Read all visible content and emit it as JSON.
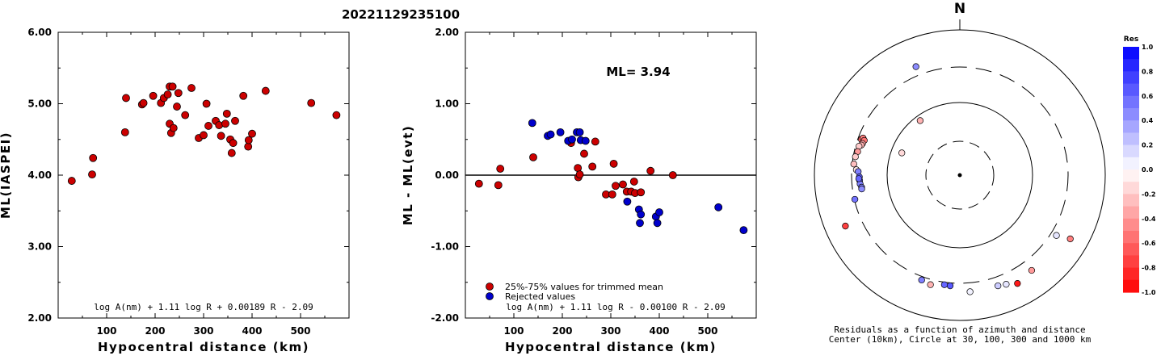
{
  "title": "20221129235100",
  "chart_data": [
    {
      "type": "scatter",
      "ylabel": "ML(IASPEI)",
      "xlabel": "Hypocentral distance (km)",
      "xlim": [
        0,
        600
      ],
      "ylim": [
        2.0,
        6.0
      ],
      "yticks": [
        "2.00",
        "3.00",
        "4.00",
        "5.00",
        "6.00"
      ],
      "xticks": [
        "100",
        "200",
        "300",
        "400",
        "500"
      ],
      "formula": "log A(nm) + 1.11 log R + 0.00189 R - 2.09",
      "points": [
        [
          28,
          3.92
        ],
        [
          70,
          4.01
        ],
        [
          72,
          4.24
        ],
        [
          138,
          4.6
        ],
        [
          140,
          5.08
        ],
        [
          173,
          4.99
        ],
        [
          176,
          5.01
        ],
        [
          196,
          5.11
        ],
        [
          212,
          5.01
        ],
        [
          218,
          5.08
        ],
        [
          226,
          5.13
        ],
        [
          230,
          5.24
        ],
        [
          230,
          4.72
        ],
        [
          233,
          4.59
        ],
        [
          236,
          5.24
        ],
        [
          238,
          4.66
        ],
        [
          245,
          4.96
        ],
        [
          248,
          5.15
        ],
        [
          262,
          4.84
        ],
        [
          275,
          5.22
        ],
        [
          290,
          4.52
        ],
        [
          300,
          4.56
        ],
        [
          306,
          5.0
        ],
        [
          310,
          4.69
        ],
        [
          325,
          4.76
        ],
        [
          332,
          4.7
        ],
        [
          336,
          4.55
        ],
        [
          345,
          4.72
        ],
        [
          348,
          4.86
        ],
        [
          355,
          4.5
        ],
        [
          358,
          4.31
        ],
        [
          361,
          4.45
        ],
        [
          365,
          4.76
        ],
        [
          382,
          5.11
        ],
        [
          392,
          4.4
        ],
        [
          393,
          4.49
        ],
        [
          400,
          4.58
        ],
        [
          428,
          5.18
        ],
        [
          522,
          5.01
        ],
        [
          574,
          4.84
        ]
      ]
    },
    {
      "type": "scatter",
      "ylabel": "ML - ML(evt)",
      "xlabel": "Hypocentral distance (km)",
      "xlim": [
        0,
        600
      ],
      "ylim": [
        -2.0,
        2.0
      ],
      "yticks": [
        "-2.00",
        "-1.00",
        "0.00",
        "1.00",
        "2.00"
      ],
      "xticks": [
        "100",
        "200",
        "300",
        "400",
        "500"
      ],
      "annotation": "ML= 3.94",
      "formula": "log A(nm) + 1.11 log R - 0.00100 R - 2.09",
      "series": [
        {
          "name": "25%-75% values for trimmed mean",
          "color": "#cc0000",
          "points": [
            [
              28,
              -0.12
            ],
            [
              68,
              -0.14
            ],
            [
              72,
              0.09
            ],
            [
              140,
              0.25
            ],
            [
              218,
              0.45
            ],
            [
              232,
              0.1
            ],
            [
              233,
              -0.03
            ],
            [
              236,
              0.01
            ],
            [
              245,
              0.3
            ],
            [
              262,
              0.12
            ],
            [
              268,
              0.47
            ],
            [
              290,
              -0.27
            ],
            [
              303,
              -0.27
            ],
            [
              306,
              0.16
            ],
            [
              310,
              -0.15
            ],
            [
              325,
              -0.13
            ],
            [
              333,
              -0.23
            ],
            [
              342,
              -0.23
            ],
            [
              348,
              -0.09
            ],
            [
              350,
              -0.25
            ],
            [
              362,
              -0.24
            ],
            [
              382,
              0.06
            ],
            [
              428,
              0.0
            ]
          ]
        },
        {
          "name": "Rejected values",
          "color": "#0000cc",
          "points": [
            [
              138,
              0.73
            ],
            [
              170,
              0.55
            ],
            [
              176,
              0.57
            ],
            [
              196,
              0.6
            ],
            [
              212,
              0.48
            ],
            [
              220,
              0.5
            ],
            [
              230,
              0.6
            ],
            [
              236,
              0.6
            ],
            [
              238,
              0.49
            ],
            [
              248,
              0.48
            ],
            [
              334,
              -0.37
            ],
            [
              358,
              -0.48
            ],
            [
              360,
              -0.67
            ],
            [
              362,
              -0.55
            ],
            [
              393,
              -0.58
            ],
            [
              396,
              -0.67
            ],
            [
              400,
              -0.52
            ],
            [
              522,
              -0.45
            ],
            [
              574,
              -0.77
            ]
          ]
        }
      ]
    },
    {
      "type": "polar-scatter",
      "north_label": "N",
      "caption_line1": "Residuals as a function of azimuth and distance",
      "caption_line2": "Center (10km), Circle at 30, 100, 300 and 1000 km",
      "rings_km": [
        30,
        100,
        300,
        1000
      ],
      "colorbar": {
        "title": "Res",
        "min": -1.0,
        "max": 1.0,
        "ticks": [
          "1.0",
          "0.8",
          "0.6",
          "0.4",
          "0.2",
          "0.0",
          "-0.2",
          "-0.4",
          "-0.6",
          "-0.8",
          "-1.0"
        ],
        "positive_color": "#0000ff",
        "negative_color": "#ff0000"
      },
      "points": [
        {
          "az": 338,
          "km": 400,
          "res": 0.45
        },
        {
          "az": 290,
          "km": 270,
          "res": -0.6
        },
        {
          "az": 291,
          "km": 260,
          "res": -0.5
        },
        {
          "az": 290,
          "km": 245,
          "res": -0.55
        },
        {
          "az": 288,
          "km": 250,
          "res": -0.35
        },
        {
          "az": 287,
          "km": 255,
          "res": -0.3
        },
        {
          "az": 286,
          "km": 270,
          "res": -0.2
        },
        {
          "az": 283,
          "km": 270,
          "res": -0.4
        },
        {
          "az": 280,
          "km": 280,
          "res": -0.2
        },
        {
          "az": 276,
          "km": 285,
          "res": -0.25
        },
        {
          "az": 273,
          "km": 260,
          "res": -0.1
        },
        {
          "az": 272,
          "km": 245,
          "res": 0.5
        },
        {
          "az": 269,
          "km": 236,
          "res": 0.6
        },
        {
          "az": 267,
          "km": 235,
          "res": 0.55
        },
        {
          "az": 265,
          "km": 233,
          "res": 0.5
        },
        {
          "az": 268,
          "km": 240,
          "res": 0.6
        },
        {
          "az": 263,
          "km": 225,
          "res": 0.5
        },
        {
          "az": 262,
          "km": 226,
          "res": 0.45
        },
        {
          "az": 257,
          "km": 295,
          "res": 0.55
        },
        {
          "az": 246,
          "km": 520,
          "res": -0.75
        },
        {
          "az": 324,
          "km": 85,
          "res": -0.3
        },
        {
          "az": 291,
          "km": 72,
          "res": -0.15
        },
        {
          "az": 122,
          "km": 360,
          "res": 0.1
        },
        {
          "az": 120,
          "km": 560,
          "res": -0.5
        },
        {
          "az": 143,
          "km": 430,
          "res": -0.4
        },
        {
          "az": 152,
          "km": 480,
          "res": -0.9
        },
        {
          "az": 157,
          "km": 420,
          "res": 0.1
        },
        {
          "az": 161,
          "km": 400,
          "res": 0.2
        },
        {
          "az": 175,
          "km": 400,
          "res": 0.05
        },
        {
          "az": 185,
          "km": 330,
          "res": 0.65
        },
        {
          "az": 188,
          "km": 325,
          "res": 0.6
        },
        {
          "az": 200,
          "km": 335,
          "res": 0.5
        },
        {
          "az": 195,
          "km": 355,
          "res": -0.3
        }
      ]
    }
  ]
}
